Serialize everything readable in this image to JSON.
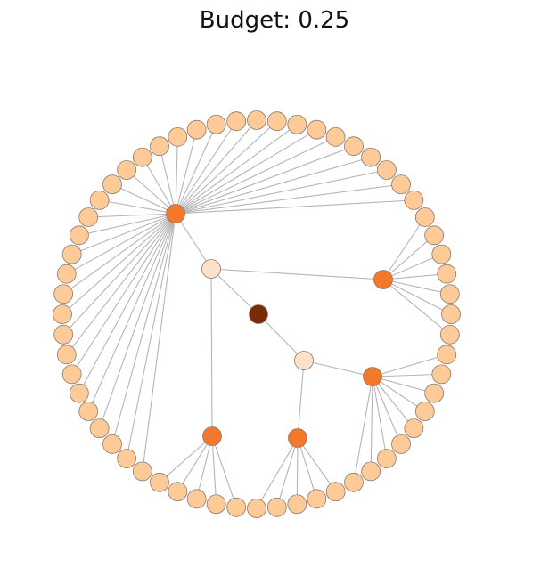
{
  "title": "Budget: 0.25",
  "colors": {
    "edge": "#b5b5b5",
    "node_stroke": "#8a7a70",
    "leaf": "#fdca98",
    "hub": "#f4782a",
    "mid": "#fde1c8",
    "root": "#7a2a06"
  }
}
